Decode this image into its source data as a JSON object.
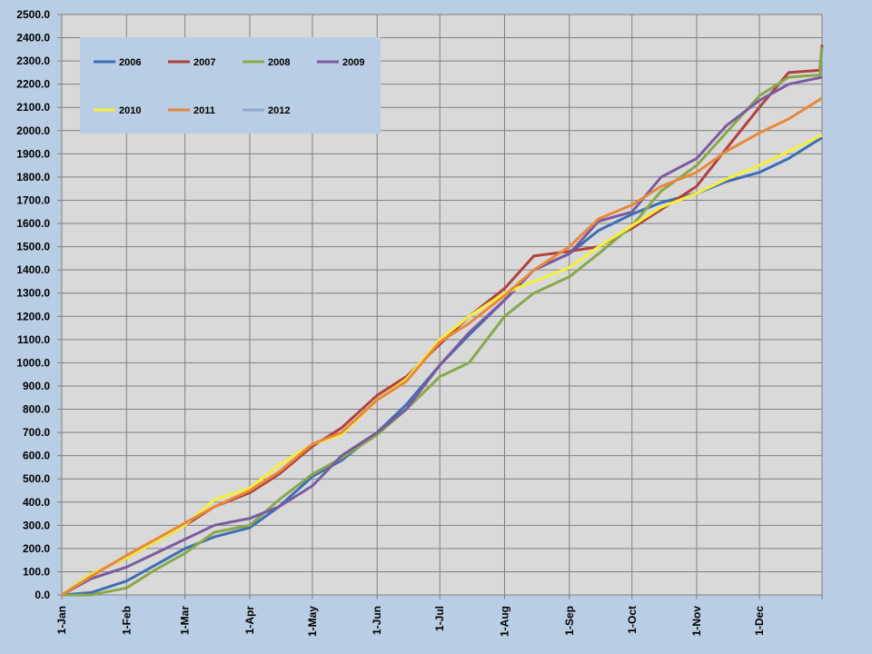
{
  "chart_data": {
    "type": "line",
    "title": "",
    "xlabel": "",
    "ylabel": "",
    "ylim": [
      0,
      2500
    ],
    "x_domain": [
      "1-Jan",
      "31-Dec"
    ],
    "grid": "on",
    "legend_position": "top-left",
    "y_ticks": [
      "0.0",
      "100.0",
      "200.0",
      "300.0",
      "400.0",
      "500.0",
      "600.0",
      "700.0",
      "800.0",
      "900.0",
      "1000.0",
      "1100.0",
      "1200.0",
      "1300.0",
      "1400.0",
      "1500.0",
      "1600.0",
      "1700.0",
      "1800.0",
      "1900.0",
      "2000.0",
      "2100.0",
      "2200.0",
      "2300.0",
      "2400.0",
      "2500.0"
    ],
    "x_ticks": [
      "1-Jan",
      "1-Feb",
      "1-Mar",
      "1-Apr",
      "1-May",
      "1-Jun",
      "1-Jul",
      "1-Aug",
      "1-Sep",
      "1-Oct",
      "1-Nov",
      "1-Dec"
    ],
    "series": [
      {
        "name": "2006",
        "color": "#3d6db5",
        "x": [
          "1-Jan",
          "15-Jan",
          "1-Feb",
          "15-Feb",
          "1-Mar",
          "15-Mar",
          "1-Apr",
          "15-Apr",
          "1-May",
          "15-May",
          "1-Jun",
          "15-Jun",
          "1-Jul",
          "15-Jul",
          "1-Aug",
          "15-Aug",
          "1-Sep",
          "15-Sep",
          "1-Oct",
          "15-Oct",
          "1-Nov",
          "15-Nov",
          "1-Dec",
          "15-Dec",
          "31-Dec"
        ],
        "values": [
          0,
          10,
          60,
          130,
          200,
          250,
          290,
          380,
          510,
          580,
          700,
          820,
          990,
          1120,
          1270,
          1400,
          1470,
          1570,
          1640,
          1690,
          1730,
          1780,
          1820,
          1880,
          1970
        ]
      },
      {
        "name": "2007",
        "color": "#b0413e",
        "x": [
          "1-Jan",
          "15-Jan",
          "1-Feb",
          "15-Feb",
          "1-Mar",
          "15-Mar",
          "1-Apr",
          "15-Apr",
          "1-May",
          "15-May",
          "1-Jun",
          "15-Jun",
          "1-Jul",
          "15-Jul",
          "1-Aug",
          "15-Aug",
          "1-Sep",
          "15-Sep",
          "1-Oct",
          "15-Oct",
          "1-Nov",
          "15-Nov",
          "1-Dec",
          "15-Dec",
          "30-Dec",
          "31-Dec"
        ],
        "values": [
          0,
          90,
          160,
          230,
          300,
          380,
          440,
          520,
          640,
          720,
          860,
          940,
          1080,
          1200,
          1320,
          1460,
          1480,
          1500,
          1580,
          1660,
          1760,
          1920,
          2100,
          2250,
          2260,
          2370
        ]
      },
      {
        "name": "2008",
        "color": "#88a84a",
        "x": [
          "1-Jan",
          "15-Jan",
          "1-Feb",
          "15-Feb",
          "1-Mar",
          "15-Mar",
          "1-Apr",
          "15-Apr",
          "1-May",
          "15-May",
          "1-Jun",
          "15-Jun",
          "1-Jul",
          "15-Jul",
          "1-Aug",
          "15-Aug",
          "1-Sep",
          "15-Sep",
          "1-Oct",
          "15-Oct",
          "1-Nov",
          "15-Nov",
          "1-Dec",
          "15-Dec",
          "30-Dec",
          "31-Dec"
        ],
        "values": [
          0,
          0,
          30,
          110,
          180,
          270,
          300,
          410,
          520,
          590,
          690,
          800,
          940,
          1000,
          1200,
          1300,
          1370,
          1470,
          1590,
          1740,
          1850,
          1990,
          2150,
          2230,
          2240,
          2360
        ]
      },
      {
        "name": "2009",
        "color": "#7a5ba0",
        "x": [
          "1-Jan",
          "15-Jan",
          "1-Feb",
          "15-Feb",
          "1-Mar",
          "15-Mar",
          "1-Apr",
          "15-Apr",
          "1-May",
          "15-May",
          "1-Jun",
          "15-Jun",
          "1-Jul",
          "15-Jul",
          "1-Aug",
          "15-Aug",
          "1-Sep",
          "15-Sep",
          "1-Oct",
          "15-Oct",
          "1-Nov",
          "15-Nov",
          "1-Dec",
          "15-Dec",
          "31-Dec"
        ],
        "values": [
          0,
          70,
          120,
          180,
          240,
          300,
          330,
          380,
          470,
          600,
          700,
          800,
          990,
          1130,
          1270,
          1400,
          1470,
          1610,
          1650,
          1800,
          1880,
          2020,
          2130,
          2200,
          2230
        ]
      },
      {
        "name": "2010",
        "color": "#f4f03a",
        "x": [
          "1-Jan",
          "15-Jan",
          "1-Feb",
          "15-Feb",
          "1-Mar",
          "15-Mar",
          "1-Apr",
          "15-Apr",
          "1-May",
          "15-May",
          "1-Jun",
          "15-Jun",
          "1-Jul",
          "15-Jul",
          "1-Aug",
          "15-Aug",
          "1-Sep",
          "15-Sep",
          "1-Oct",
          "15-Oct",
          "1-Nov",
          "15-Nov",
          "1-Dec",
          "15-Dec",
          "31-Dec"
        ],
        "values": [
          0,
          90,
          160,
          230,
          300,
          410,
          460,
          560,
          650,
          690,
          840,
          930,
          1100,
          1200,
          1300,
          1350,
          1410,
          1500,
          1590,
          1670,
          1730,
          1790,
          1850,
          1910,
          1980
        ]
      },
      {
        "name": "2011",
        "color": "#e8883a",
        "x": [
          "1-Jan",
          "15-Jan",
          "1-Feb",
          "15-Feb",
          "1-Mar",
          "15-Mar",
          "1-Apr",
          "15-Apr",
          "1-May",
          "15-May",
          "1-Jun",
          "15-Jun",
          "1-Jul",
          "15-Jul",
          "1-Aug",
          "15-Aug",
          "1-Sep",
          "15-Sep",
          "1-Oct",
          "15-Oct",
          "1-Nov",
          "15-Nov",
          "1-Dec",
          "15-Dec",
          "31-Dec"
        ],
        "values": [
          0,
          80,
          170,
          240,
          310,
          380,
          450,
          530,
          650,
          700,
          840,
          920,
          1090,
          1170,
          1290,
          1400,
          1500,
          1620,
          1680,
          1760,
          1820,
          1910,
          1990,
          2050,
          2140
        ]
      },
      {
        "name": "2012",
        "color": "#8fa9cf",
        "x": [],
        "values": []
      }
    ]
  }
}
